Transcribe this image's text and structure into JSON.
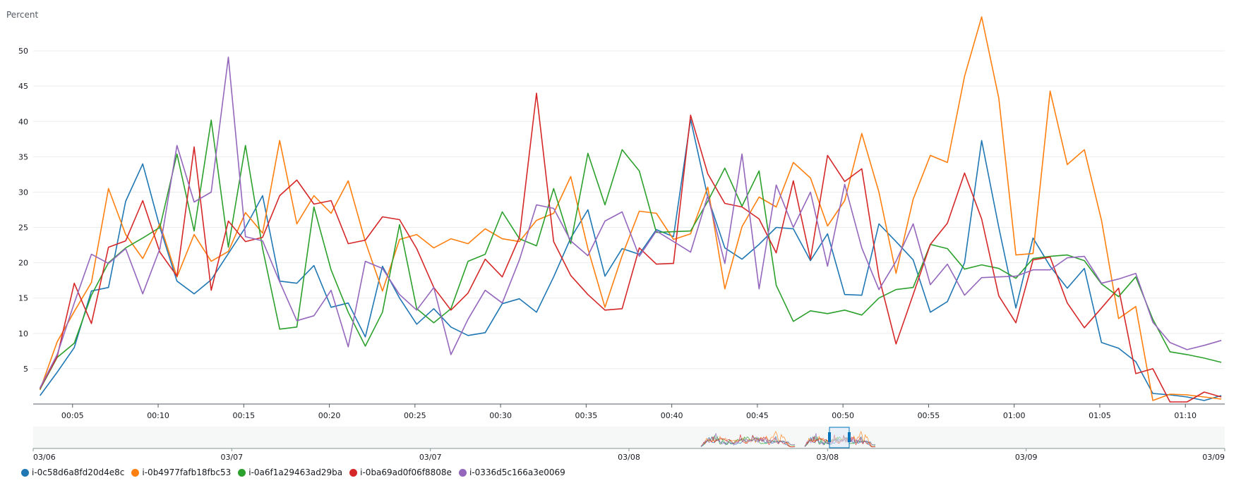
{
  "chart_data": {
    "type": "line",
    "ylabel": "Percent",
    "ylim": [
      0,
      55
    ],
    "yticks": [
      5,
      10,
      15,
      20,
      25,
      30,
      35,
      40,
      45,
      50
    ],
    "x_tick_labels": [
      "00:05",
      "00:10",
      "00:15",
      "00:20",
      "00:25",
      "00:30",
      "00:35",
      "00:40",
      "00:45",
      "00:50",
      "00:55",
      "01:00",
      "01:05",
      "01:10"
    ],
    "x_tick_minutes": [
      5,
      10,
      15,
      20,
      25,
      30,
      35,
      40,
      45,
      50,
      55,
      60,
      65,
      70
    ],
    "x": [
      3.1,
      4.1,
      5.1,
      6.1,
      7.1,
      8.1,
      9.1,
      10.1,
      11.1,
      12.1,
      13.1,
      14.1,
      15.1,
      16.1,
      17.1,
      18.1,
      19.1,
      20.1,
      21.1,
      22.1,
      23.1,
      24.1,
      25.1,
      26.1,
      27.1,
      28.1,
      29.1,
      30.1,
      31.1,
      32.1,
      33.1,
      34.1,
      35.1,
      36.1,
      37.1,
      38.1,
      39.1,
      40.1,
      41.1,
      42.1,
      43.1,
      44.1,
      45.1,
      46.1,
      47.1,
      48.1,
      49.1,
      50.1,
      51.1,
      52.1,
      53.1,
      54.1,
      55.1,
      56.1,
      57.1,
      58.1,
      59.1,
      60.1,
      61.1,
      62.1,
      63.1,
      64.1,
      65.1,
      66.1,
      67.1,
      68.1,
      69.1,
      70.1,
      71.1,
      72.1
    ],
    "series": [
      {
        "name": "i-0c58d6a8fd20d4e8c",
        "color": "#1f77b4",
        "values": [
          1.2,
          4.5,
          8,
          16,
          16.5,
          28.7,
          34,
          25,
          17.4,
          15.6,
          17.6,
          21.3,
          25,
          29.5,
          17.4,
          17.1,
          19.6,
          13.7,
          14.3,
          9.5,
          19.5,
          15,
          11.3,
          13.5,
          10.9,
          9.7,
          10.1,
          14.2,
          14.9,
          13,
          18,
          23.5,
          27.5,
          18.1,
          22,
          21.2,
          24.7,
          23.7,
          40.3,
          29.3,
          22.1,
          20.5,
          22.6,
          25,
          24.8,
          20.3,
          24.1,
          15.5,
          15.4,
          25.5,
          23,
          20.4,
          13,
          14.5,
          20,
          37.3,
          25,
          13.6,
          23.5,
          19.5,
          16.4,
          19.2,
          8.7,
          7.9,
          6,
          1.5,
          1.3,
          1,
          0.5,
          1.2
        ]
      },
      {
        "name": "i-0b4977fafb18fbc53",
        "color": "#ff7f0e",
        "values": [
          2,
          8.8,
          13.1,
          17.2,
          30.5,
          24,
          20.6,
          25.5,
          18,
          24,
          20.2,
          21.6,
          27.1,
          24.2,
          37.3,
          25.5,
          29.5,
          27,
          31.6,
          23,
          16,
          23.3,
          24,
          22.1,
          23.4,
          22.7,
          24.8,
          23.4,
          23,
          26,
          27,
          32.2,
          22,
          13.7,
          21,
          27.3,
          27,
          23.3,
          24.1,
          30.7,
          16.3,
          25.1,
          29.3,
          27.9,
          34.2,
          32,
          25.2,
          28.8,
          38.3,
          30,
          18.5,
          29,
          35.2,
          34.2,
          46.4,
          54.8,
          43.3,
          21.1,
          21.3,
          44.3,
          33.9,
          36,
          26,
          12.1,
          13.8,
          0.5,
          1.4,
          1.3,
          1,
          0.7
        ]
      },
      {
        "name": "i-0a6f1a29463ad29ba",
        "color": "#2ca02c",
        "values": [
          2.1,
          6.6,
          8.6,
          15.4,
          20,
          22.1,
          23.5,
          25,
          35.4,
          24.5,
          40.2,
          22.2,
          36.6,
          22,
          10.6,
          10.9,
          27.9,
          19,
          13,
          8.2,
          13,
          25.4,
          13.5,
          11.5,
          13.5,
          20.2,
          21.2,
          27.2,
          23.4,
          22.4,
          30.5,
          22.7,
          35.5,
          28.2,
          36,
          33,
          24.3,
          24.4,
          24.5,
          28.7,
          33.4,
          28,
          33,
          16.8,
          11.7,
          13.2,
          12.8,
          13.3,
          12.6,
          15,
          16.2,
          16.5,
          22.6,
          22,
          19.1,
          19.7,
          19.2,
          17.8,
          20.6,
          20.9,
          21.1,
          20.3,
          17,
          15.2,
          18,
          12,
          7.4,
          7,
          6.5,
          5.9
        ]
      },
      {
        "name": "i-0ba69ad0f06f8808e",
        "color": "#d62728",
        "values": [
          2.2,
          6.7,
          17.1,
          11.4,
          22.2,
          23.1,
          28.8,
          21.5,
          18.1,
          36.4,
          16.1,
          25.9,
          23,
          23.6,
          29.5,
          31.7,
          28.3,
          28.8,
          22.7,
          23.2,
          26.5,
          26.1,
          22,
          16.5,
          13.3,
          15.7,
          20.5,
          18,
          23.6,
          44,
          23,
          18.2,
          15.5,
          13.3,
          13.5,
          22.1,
          19.8,
          19.9,
          40.9,
          32.6,
          28.4,
          27.9,
          26.2,
          21.4,
          31.6,
          20.5,
          35.2,
          31.5,
          33.3,
          18,
          8.5,
          15.5,
          22.6,
          25.6,
          32.7,
          26.2,
          15.3,
          11.5,
          20.4,
          20.8,
          14.3,
          10.8,
          13.6,
          16.4,
          4.3,
          5,
          0.3,
          0.3,
          1.7,
          1
        ]
      },
      {
        "name": "i-0336d5c166a3e0069",
        "color": "#9467bd",
        "values": [
          2.3,
          7,
          14.3,
          21.2,
          19.9,
          22,
          15.6,
          22,
          36.6,
          28.6,
          30,
          49.1,
          23.7,
          23.1,
          17.3,
          11.8,
          12.5,
          16.1,
          8.1,
          20.2,
          19.2,
          15.5,
          13.3,
          16.5,
          7,
          12,
          16.1,
          14.3,
          20.4,
          28.2,
          27.7,
          23.1,
          21,
          25.9,
          27.2,
          20.9,
          24.5,
          23,
          21.5,
          29.5,
          19.9,
          35.4,
          16.3,
          31,
          25,
          30,
          19.5,
          31.1,
          22.1,
          16.2,
          20.2,
          25.5,
          16.9,
          19.8,
          15.4,
          17.9,
          18,
          18.1,
          19,
          19,
          20.7,
          20.9,
          17.1,
          17.7,
          18.5,
          11.6,
          8.7,
          7.7,
          8.3,
          9
        ]
      }
    ],
    "navigator": {
      "date_labels": [
        "03/06",
        "03/07",
        "03/07",
        "03/08",
        "03/08",
        "03/09",
        "03/09"
      ]
    }
  }
}
